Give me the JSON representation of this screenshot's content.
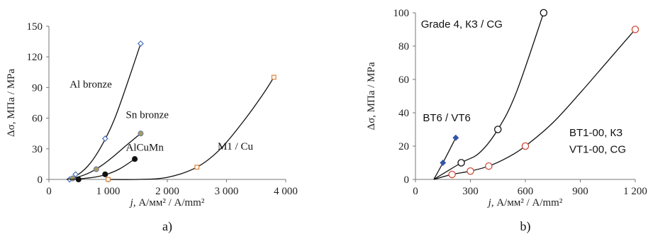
{
  "chart_data": [
    {
      "type": "scatter",
      "panel_label": "a)",
      "xlabel_italic": "j",
      "xlabel_rest": ", А/мм² / A/mm²",
      "ylabel": "Δσ, МПа / MPa",
      "xlim": [
        0,
        4000
      ],
      "ylim": [
        0,
        150
      ],
      "x_ticks": [
        0,
        1000,
        2000,
        3000,
        4000
      ],
      "x_tick_labels": [
        "0",
        "1 000",
        "2 000",
        "3 000",
        "4 000"
      ],
      "y_ticks": [
        0,
        30,
        60,
        90,
        120,
        150
      ],
      "y_tick_labels": [
        "0",
        "30",
        "60",
        "90",
        "120",
        "150"
      ],
      "grid": false,
      "series": [
        {
          "name": "Al bronze",
          "marker": "diamond",
          "marker_color": "#4a72b8",
          "marker_fill": "#ffffff",
          "points": [
            [
              350,
              0
            ],
            [
              450,
              5
            ],
            [
              950,
              40
            ],
            [
              1550,
              133
            ]
          ],
          "curve": [
            [
              300,
              0
            ],
            [
              500,
              5
            ],
            [
              700,
              16
            ],
            [
              900,
              34
            ],
            [
              1100,
              58
            ],
            [
              1300,
              90
            ],
            [
              1550,
              133
            ]
          ],
          "label_pos_data": [
            350,
            90
          ]
        },
        {
          "name": "Sn bronze",
          "marker": "circle",
          "marker_color": "#6e85a3",
          "marker_fill": "#b39a55",
          "points": [
            [
              400,
              1
            ],
            [
              800,
              10
            ],
            [
              1550,
              45
            ]
          ],
          "curve": [
            [
              300,
              0
            ],
            [
              500,
              2.5
            ],
            [
              700,
              7
            ],
            [
              900,
              14
            ],
            [
              1100,
              23
            ],
            [
              1300,
              33
            ],
            [
              1550,
              45
            ]
          ],
          "label_pos_data": [
            1300,
            60
          ]
        },
        {
          "name": "AlCuMn",
          "marker": "circle",
          "marker_color": "#111111",
          "marker_fill": "#111111",
          "points": [
            [
              500,
              0
            ],
            [
              950,
              5
            ],
            [
              1450,
              20
            ]
          ],
          "curve": [
            [
              350,
              0
            ],
            [
              600,
              1
            ],
            [
              800,
              2.5
            ],
            [
              1000,
              5.5
            ],
            [
              1200,
              10.5
            ],
            [
              1450,
              20
            ]
          ],
          "label_pos_data": [
            1300,
            28
          ]
        },
        {
          "name": "M1 / Cu",
          "marker": "square",
          "marker_color": "#d9823a",
          "marker_fill": "#ffffff",
          "points": [
            [
              1000,
              0
            ],
            [
              2500,
              12
            ],
            [
              3800,
              100
            ]
          ],
          "curve": [
            [
              1000,
              0
            ],
            [
              1500,
              0
            ],
            [
              2000,
              2
            ],
            [
              2500,
              12
            ],
            [
              2900,
              30
            ],
            [
              3300,
              58
            ],
            [
              3600,
              82
            ],
            [
              3800,
              100
            ]
          ],
          "label_pos_data": [
            2850,
            29
          ]
        }
      ]
    },
    {
      "type": "scatter",
      "panel_label": "b)",
      "xlabel_italic": "j",
      "xlabel_rest": ", А/мм² / A/mm²",
      "ylabel": "Δσ, МПа / MPa",
      "xlim": [
        0,
        1200
      ],
      "ylim": [
        0,
        100
      ],
      "x_ticks": [
        0,
        300,
        600,
        900,
        1200
      ],
      "x_tick_labels": [
        "0",
        "300",
        "600",
        "900",
        "1 200"
      ],
      "y_ticks": [
        0,
        20,
        40,
        60,
        80,
        100
      ],
      "y_tick_labels": [
        "0",
        "20",
        "40",
        "60",
        "80",
        "100"
      ],
      "grid": false,
      "series": [
        {
          "name": "Grade 4, КЗ / CG",
          "marker": "circle",
          "marker_color": "#111111",
          "marker_fill": "#ffffff",
          "points": [
            [
              250,
              10
            ],
            [
              450,
              30
            ],
            [
              700,
              100
            ]
          ],
          "curve": [
            [
              100,
              0
            ],
            [
              250,
              10
            ],
            [
              350,
              16
            ],
            [
              450,
              30
            ],
            [
              550,
              52
            ],
            [
              700,
              100
            ]
          ],
          "label_pos_data": [
            30,
            91
          ]
        },
        {
          "name": "BT6 / VT6",
          "marker": "diamond_filled",
          "marker_color": "#3355aa",
          "marker_fill": "#3355aa",
          "points": [
            [
              150,
              10
            ],
            [
              220,
              25
            ]
          ],
          "curve": [
            [
              100,
              0
            ],
            [
              150,
              10
            ],
            [
              220,
              25
            ]
          ],
          "label_pos_data": [
            40,
            35
          ]
        },
        {
          "name": "BT1-00, КЗ",
          "name2": "VT1-00, CG",
          "marker": "circle",
          "marker_color": "#d14a3a",
          "marker_fill": "#ffffff",
          "points": [
            [
              200,
              3
            ],
            [
              300,
              5
            ],
            [
              400,
              8
            ],
            [
              600,
              20
            ],
            [
              1200,
              90
            ]
          ],
          "curve": [
            [
              100,
              0
            ],
            [
              200,
              3
            ],
            [
              300,
              5
            ],
            [
              400,
              8
            ],
            [
              500,
              13
            ],
            [
              600,
              20
            ],
            [
              750,
              34
            ],
            [
              900,
              52
            ],
            [
              1050,
              71
            ],
            [
              1200,
              90
            ]
          ],
          "label_pos_data": [
            840,
            26
          ],
          "label_pos_data2": [
            840,
            16
          ]
        }
      ]
    }
  ]
}
